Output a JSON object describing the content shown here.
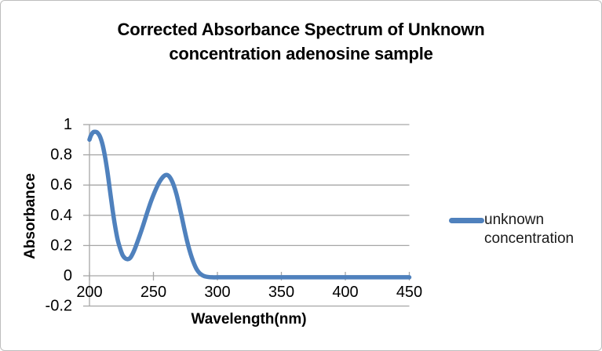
{
  "title": {
    "line1": "Corrected Absorbance Spectrum of Unknown",
    "line2": "concentration adenosine sample"
  },
  "legend": {
    "label": "unknown concentration"
  },
  "colors": {
    "series_blue": "#4F81BD",
    "gridline_gray": "#A6A6A6",
    "frame_border_gray": "#BDBDBD",
    "text_black": "#000000"
  },
  "chart_data": {
    "type": "line",
    "title": "Corrected Absorbance Spectrum of Unknown concentration adenosine sample",
    "xlabel": "Wavelength(nm)",
    "ylabel": "Absorbance",
    "xlim": [
      200,
      450
    ],
    "ylim": [
      -0.2,
      1.0
    ],
    "x_ticks": [
      200,
      250,
      300,
      350,
      400,
      450
    ],
    "y_ticks": [
      1,
      0.8,
      0.6,
      0.4,
      0.2,
      0,
      -0.2
    ],
    "grid": "horizontal-only",
    "legend_position": "right",
    "series": [
      {
        "name": "unknown concentration",
        "color": "#4F81BD",
        "x": [
          200,
          201,
          202,
          203,
          204,
          205,
          206,
          208,
          210,
          212,
          214,
          216,
          218,
          220,
          222,
          224,
          226,
          228,
          230,
          232,
          234,
          236,
          239,
          242,
          245,
          248,
          251,
          254,
          256,
          258,
          260,
          262,
          264,
          266,
          268,
          270,
          272,
          274,
          276,
          278,
          280,
          282,
          284,
          286,
          288,
          290,
          293,
          296,
          300,
          310,
          330,
          350,
          375,
          400,
          425,
          450
        ],
        "y": [
          0.9,
          0.925,
          0.94,
          0.95,
          0.952,
          0.952,
          0.948,
          0.925,
          0.875,
          0.795,
          0.69,
          0.565,
          0.44,
          0.33,
          0.24,
          0.18,
          0.135,
          0.115,
          0.11,
          0.12,
          0.15,
          0.19,
          0.26,
          0.335,
          0.415,
          0.49,
          0.555,
          0.61,
          0.638,
          0.658,
          0.667,
          0.66,
          0.635,
          0.595,
          0.54,
          0.47,
          0.395,
          0.315,
          0.24,
          0.175,
          0.12,
          0.075,
          0.04,
          0.018,
          0.005,
          -0.003,
          -0.008,
          -0.01,
          -0.01,
          -0.01,
          -0.01,
          -0.01,
          -0.01,
          -0.01,
          -0.01,
          -0.01
        ]
      }
    ]
  }
}
